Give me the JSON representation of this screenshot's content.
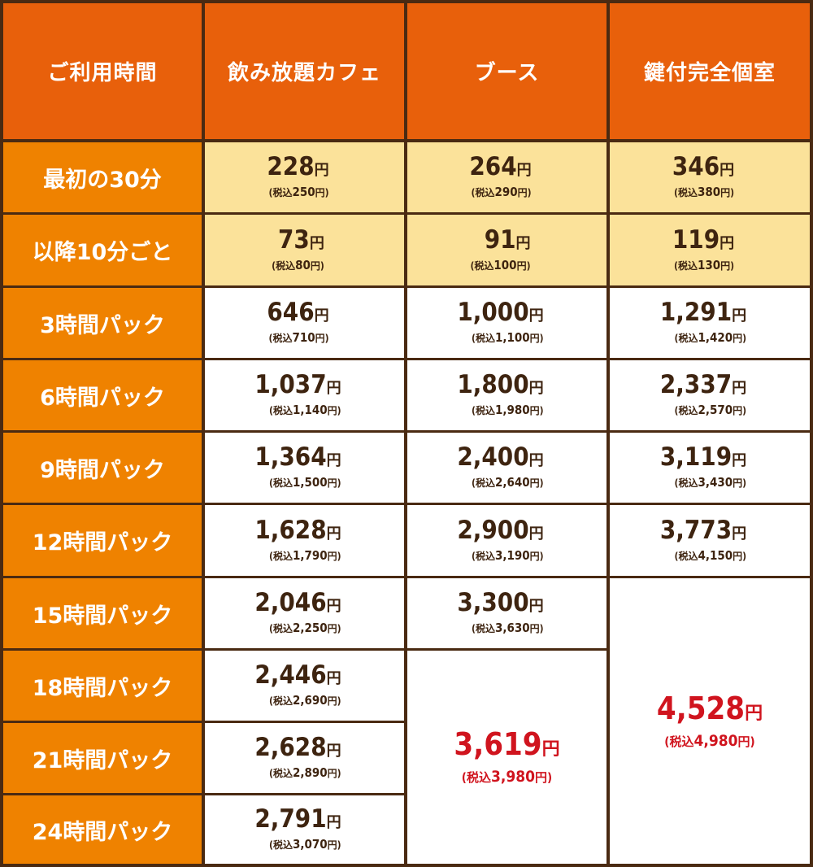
{
  "header": [
    "ご利用時間",
    "飲み放題カフェ",
    "ブース",
    "鍵付完全個室"
  ],
  "yen": "円",
  "tax_prefix": "税込",
  "rows": [
    {
      "label": "最初の30分",
      "prices": [
        {
          "main": "228",
          "tax": "250"
        },
        {
          "main": "264",
          "tax": "290"
        },
        {
          "main": "346",
          "tax": "380"
        }
      ]
    },
    {
      "label": "以降10分ごと",
      "prices": [
        {
          "main": "73",
          "tax": "80"
        },
        {
          "main": "91",
          "tax": "100"
        },
        {
          "main": "119",
          "tax": "130"
        }
      ]
    },
    {
      "label": "3時間パック",
      "prices": [
        {
          "main": "646",
          "tax": "710"
        },
        {
          "main": "1,000",
          "tax": "1,100"
        },
        {
          "main": "1,291",
          "tax": "1,420"
        }
      ]
    },
    {
      "label": "6時間パック",
      "prices": [
        {
          "main": "1,037",
          "tax": "1,140"
        },
        {
          "main": "1,800",
          "tax": "1,980"
        },
        {
          "main": "2,337",
          "tax": "2,570"
        }
      ]
    },
    {
      "label": "9時間パック",
      "prices": [
        {
          "main": "1,364",
          "tax": "1,500"
        },
        {
          "main": "2,400",
          "tax": "2,640"
        },
        {
          "main": "3,119",
          "tax": "3,430"
        }
      ]
    },
    {
      "label": "12時間パック",
      "prices": [
        {
          "main": "1,628",
          "tax": "1,790"
        },
        {
          "main": "2,900",
          "tax": "3,190"
        },
        {
          "main": "3,773",
          "tax": "4,150"
        }
      ]
    },
    {
      "label": "15時間パック",
      "prices": [
        {
          "main": "2,046",
          "tax": "2,250"
        },
        {
          "main": "3,300",
          "tax": "3,630"
        }
      ]
    },
    {
      "label": "18時間パック",
      "prices": [
        {
          "main": "2,446",
          "tax": "2,690"
        }
      ]
    },
    {
      "label": "21時間パック",
      "prices": [
        {
          "main": "2,628",
          "tax": "2,890"
        }
      ]
    },
    {
      "label": "24時間パック",
      "prices": [
        {
          "main": "2,791",
          "tax": "3,070"
        }
      ]
    }
  ],
  "merged": [
    {
      "col": 2,
      "row_start": 7,
      "row_end": 9,
      "main": "3,619",
      "tax": "3,980"
    },
    {
      "col": 3,
      "row_start": 6,
      "row_end": 9,
      "main": "4,528",
      "tax": "4,980"
    }
  ],
  "colors": {
    "header_bg": "#e8600b",
    "label_bg": "#ef8200",
    "highlight_bg": "#fbe29a",
    "price_text": "#3e2410",
    "accent_red": "#d0141e",
    "border": "#4a2a12"
  }
}
